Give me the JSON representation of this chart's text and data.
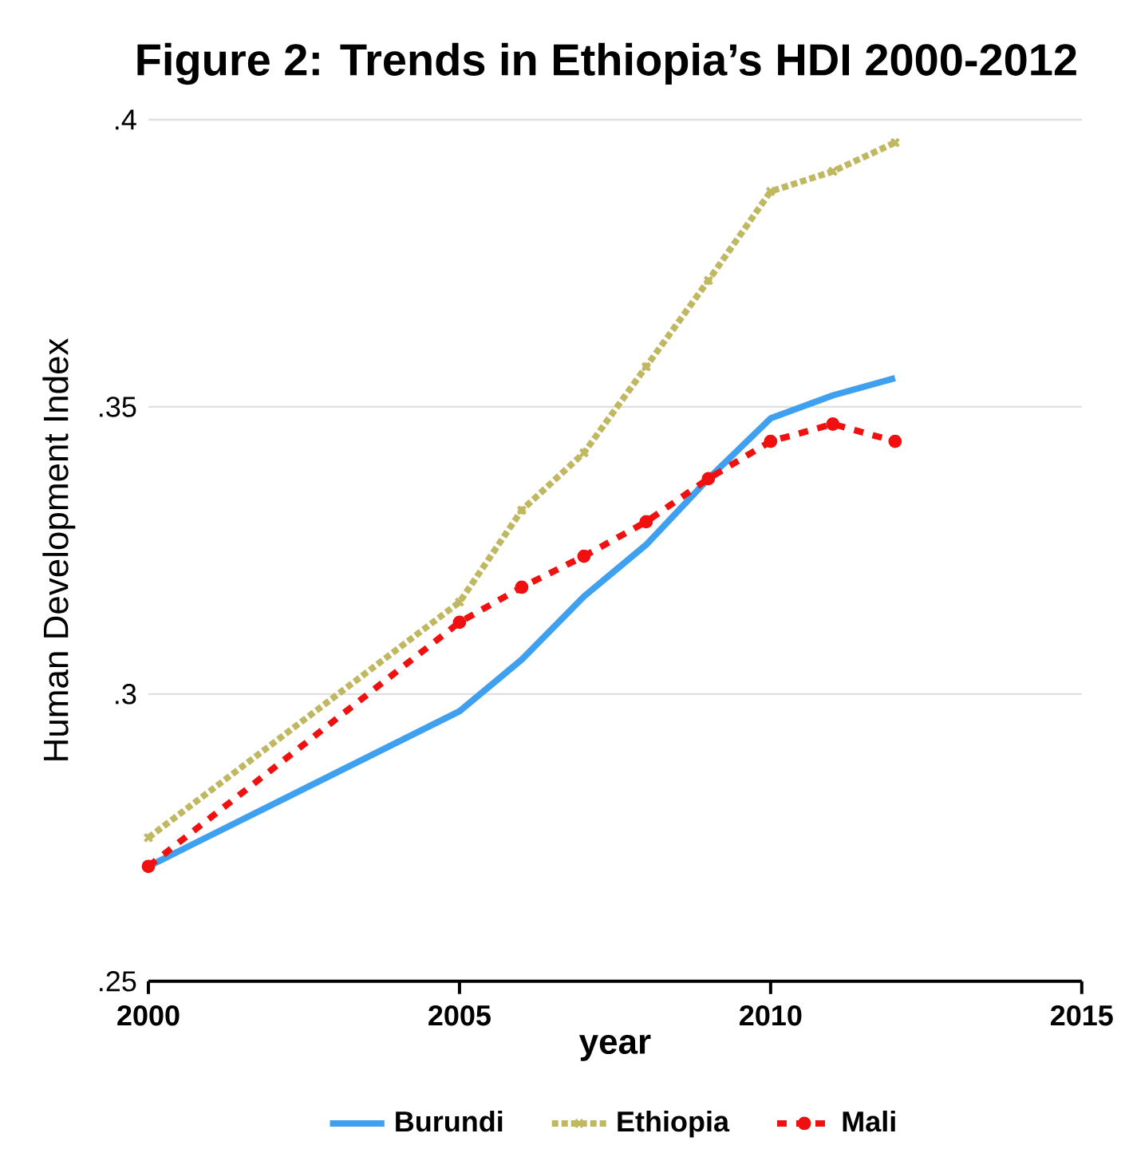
{
  "chart_data": {
    "type": "line",
    "title": "Figure 2: Trends in Ethiopia’s HDI 2000-2012",
    "xlabel": "year",
    "ylabel": "Human Development Index",
    "x": [
      2000,
      2005,
      2006,
      2007,
      2008,
      2009,
      2010,
      2011,
      2012
    ],
    "series": [
      {
        "name": "Burundi",
        "color": "#3fa0f0",
        "line_style": "solid",
        "marker": "none",
        "values": [
          0.27,
          0.297,
          0.306,
          0.317,
          0.326,
          0.3375,
          0.348,
          0.352,
          0.355
        ]
      },
      {
        "name": "Ethiopia",
        "color": "#c0b860",
        "line_style": "dotted",
        "marker": "cross",
        "values": [
          0.275,
          0.316,
          0.332,
          0.342,
          0.357,
          0.372,
          0.3875,
          0.391,
          0.396
        ]
      },
      {
        "name": "Mali",
        "color": "#f01010",
        "line_style": "dashed",
        "marker": "circle",
        "values": [
          0.27,
          0.3125,
          0.3186,
          0.324,
          0.33,
          0.3375,
          0.344,
          0.347,
          0.344
        ]
      }
    ],
    "xlim": [
      2000,
      2015
    ],
    "xticks": [
      2000,
      2005,
      2010,
      2015
    ],
    "ylim": [
      0.25,
      0.4
    ],
    "yticks": [
      {
        "value": 0.25,
        "label": ".25"
      },
      {
        "value": 0.3,
        "label": ".3"
      },
      {
        "value": 0.35,
        "label": ".35"
      },
      {
        "value": 0.4,
        "label": ".4"
      }
    ],
    "grid": "y",
    "legend": "bottom"
  }
}
